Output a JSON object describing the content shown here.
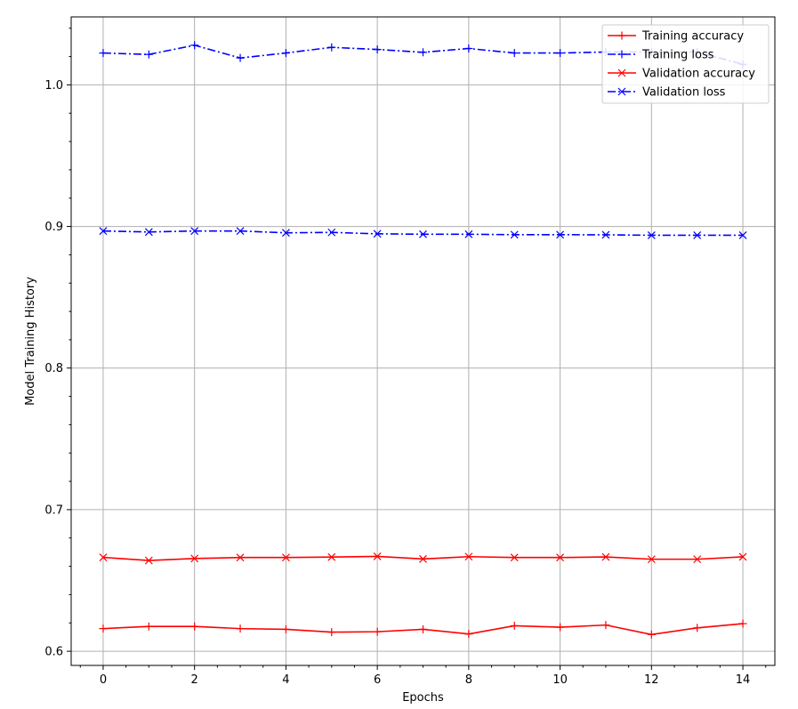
{
  "chart_data": {
    "type": "line",
    "title": "",
    "xlabel": "Epochs",
    "ylabel": "Model Training History",
    "x": [
      0,
      1,
      2,
      3,
      4,
      5,
      6,
      7,
      8,
      9,
      10,
      11,
      12,
      13,
      14
    ],
    "xlim": [
      -0.7,
      14.7
    ],
    "ylim": [
      0.59,
      1.048
    ],
    "xticks": [
      0,
      2,
      4,
      6,
      8,
      10,
      12,
      14
    ],
    "yticks": [
      0.6,
      0.7,
      0.8,
      0.9,
      1.0
    ],
    "xtick_labels": [
      "0",
      "2",
      "4",
      "6",
      "8",
      "10",
      "12",
      "14"
    ],
    "ytick_labels": [
      "0.6",
      "0.7",
      "0.8",
      "0.9",
      "1.0"
    ],
    "grid": true,
    "legend_position": "top-right",
    "series": [
      {
        "name": "Training accuracy",
        "color": "#ff0000",
        "line_style": "solid",
        "marker": "plus",
        "values": [
          0.616,
          0.6175,
          0.6175,
          0.616,
          0.6155,
          0.6135,
          0.6138,
          0.6155,
          0.6122,
          0.618,
          0.617,
          0.6185,
          0.6118,
          0.6165,
          0.6195
        ]
      },
      {
        "name": "Training loss",
        "color": "#0000ff",
        "line_style": "dashdot",
        "marker": "plus",
        "values": [
          1.0225,
          1.0215,
          1.028,
          1.019,
          1.0225,
          1.0265,
          1.025,
          1.023,
          1.0257,
          1.0225,
          1.0225,
          1.0232,
          1.0232,
          1.0232,
          1.0145
        ]
      },
      {
        "name": "Validation accuracy",
        "color": "#ff0000",
        "line_style": "solid",
        "marker": "x",
        "values": [
          0.6663,
          0.6641,
          0.6655,
          0.6662,
          0.6662,
          0.6665,
          0.667,
          0.6652,
          0.6668,
          0.6662,
          0.6662,
          0.6666,
          0.665,
          0.665,
          0.6667
        ]
      },
      {
        "name": "Validation loss",
        "color": "#0000ff",
        "line_style": "dashdot",
        "marker": "x",
        "values": [
          0.8968,
          0.8961,
          0.8968,
          0.8968,
          0.8955,
          0.8958,
          0.8948,
          0.8945,
          0.8945,
          0.8942,
          0.8942,
          0.8941,
          0.8938,
          0.8938,
          0.8938
        ]
      }
    ]
  }
}
